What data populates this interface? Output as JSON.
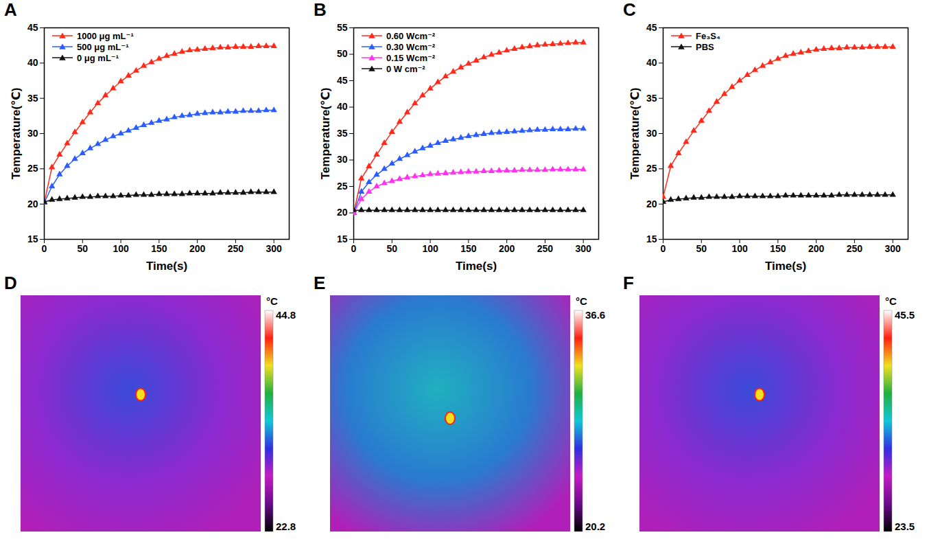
{
  "chart_data": [
    {
      "panel": "A",
      "type": "line",
      "marker": "triangle",
      "legend": "upper left",
      "x_label": "Time(s)",
      "y_label": "Temperature(℃)",
      "xlim": [
        0,
        320
      ],
      "xticks": [
        0,
        50,
        100,
        150,
        200,
        250,
        300
      ],
      "ylim": [
        15,
        45
      ],
      "yticks": [
        15,
        20,
        25,
        30,
        35,
        40,
        45
      ],
      "x": [
        0,
        10,
        20,
        30,
        40,
        50,
        60,
        70,
        80,
        90,
        100,
        110,
        120,
        130,
        140,
        150,
        160,
        170,
        180,
        190,
        200,
        210,
        220,
        230,
        240,
        250,
        260,
        270,
        280,
        290,
        300
      ],
      "series": [
        {
          "name": "1000 μg mL⁻¹",
          "color": "#ff2a1a",
          "values": [
            20.2,
            25.2,
            27.0,
            28.6,
            30.2,
            31.6,
            33.0,
            34.3,
            35.4,
            36.4,
            37.4,
            38.2,
            38.9,
            39.6,
            40.1,
            40.6,
            41.0,
            41.3,
            41.6,
            41.8,
            41.9,
            42.0,
            42.1,
            42.2,
            42.2,
            42.3,
            42.3,
            42.3,
            42.4,
            42.4,
            42.4
          ]
        },
        {
          "name": "500 μg mL⁻¹",
          "color": "#2a5cff",
          "values": [
            20.2,
            22.5,
            24.2,
            25.4,
            26.4,
            27.2,
            27.9,
            28.5,
            29.1,
            29.6,
            30.0,
            30.4,
            30.8,
            31.2,
            31.5,
            31.8,
            32.0,
            32.3,
            32.5,
            32.6,
            32.8,
            32.9,
            33.0,
            33.0,
            33.1,
            33.1,
            33.2,
            33.2,
            33.2,
            33.3,
            33.3
          ]
        },
        {
          "name": "0 μg mL⁻¹",
          "color": "#111111",
          "values": [
            20.3,
            20.6,
            20.7,
            20.8,
            20.9,
            21.0,
            21.0,
            21.1,
            21.1,
            21.1,
            21.2,
            21.2,
            21.3,
            21.3,
            21.3,
            21.4,
            21.4,
            21.4,
            21.4,
            21.5,
            21.5,
            21.5,
            21.5,
            21.6,
            21.6,
            21.6,
            21.6,
            21.7,
            21.7,
            21.7,
            21.7
          ]
        }
      ]
    },
    {
      "panel": "B",
      "type": "line",
      "marker": "triangle",
      "legend": "upper left",
      "x_label": "Time(s)",
      "y_label": "Temperature(℃)",
      "xlim": [
        0,
        320
      ],
      "xticks": [
        0,
        50,
        100,
        150,
        200,
        250,
        300
      ],
      "ylim": [
        15,
        55
      ],
      "yticks": [
        15,
        20,
        25,
        30,
        35,
        40,
        45,
        50,
        55
      ],
      "x": [
        0,
        10,
        20,
        30,
        40,
        50,
        60,
        70,
        80,
        90,
        100,
        110,
        120,
        130,
        140,
        150,
        160,
        170,
        180,
        190,
        200,
        210,
        220,
        230,
        240,
        250,
        260,
        270,
        280,
        290,
        300
      ],
      "series": [
        {
          "name": "0.60 Wcm⁻²",
          "color": "#ff2a1a",
          "values": [
            20.0,
            26.5,
            28.8,
            31.0,
            33.2,
            35.3,
            37.2,
            39.0,
            40.7,
            42.2,
            43.5,
            44.7,
            45.8,
            46.7,
            47.5,
            48.2,
            48.8,
            49.4,
            49.9,
            50.3,
            50.7,
            51.0,
            51.3,
            51.5,
            51.7,
            51.8,
            51.9,
            52.0,
            52.1,
            52.2,
            52.2
          ]
        },
        {
          "name": "0.30 Wcm⁻²",
          "color": "#2a5cff",
          "values": [
            20.0,
            24.0,
            25.8,
            27.2,
            28.3,
            29.3,
            30.2,
            30.9,
            31.6,
            32.2,
            32.7,
            33.2,
            33.6,
            33.9,
            34.2,
            34.5,
            34.7,
            34.9,
            35.1,
            35.2,
            35.3,
            35.4,
            35.5,
            35.6,
            35.7,
            35.7,
            35.8,
            35.8,
            35.8,
            35.9,
            35.9
          ]
        },
        {
          "name": "0.15 Wcm⁻²",
          "color": "#ff33ee",
          "values": [
            20.0,
            22.6,
            24.0,
            25.0,
            25.6,
            26.0,
            26.4,
            26.7,
            26.9,
            27.1,
            27.3,
            27.4,
            27.5,
            27.6,
            27.7,
            27.8,
            27.8,
            27.9,
            27.9,
            28.0,
            28.0,
            28.0,
            28.1,
            28.1,
            28.1,
            28.1,
            28.2,
            28.2,
            28.2,
            28.2,
            28.2
          ]
        },
        {
          "name": "0 W cm⁻²",
          "color": "#111111",
          "values": [
            20.5,
            20.5,
            20.5,
            20.5,
            20.5,
            20.5,
            20.5,
            20.5,
            20.5,
            20.5,
            20.5,
            20.5,
            20.5,
            20.5,
            20.5,
            20.5,
            20.5,
            20.5,
            20.5,
            20.5,
            20.5,
            20.5,
            20.5,
            20.5,
            20.5,
            20.5,
            20.5,
            20.5,
            20.5,
            20.5,
            20.5
          ]
        }
      ]
    },
    {
      "panel": "C",
      "type": "line",
      "marker": "triangle",
      "legend": "upper left",
      "x_label": "Time(s)",
      "y_label": "Temperature(℃)",
      "xlim": [
        0,
        320
      ],
      "xticks": [
        0,
        50,
        100,
        150,
        200,
        250,
        300
      ],
      "ylim": [
        15,
        45
      ],
      "yticks": [
        15,
        20,
        25,
        30,
        35,
        40,
        45
      ],
      "x": [
        0,
        10,
        20,
        30,
        40,
        50,
        60,
        70,
        80,
        90,
        100,
        110,
        120,
        130,
        140,
        150,
        160,
        170,
        180,
        190,
        200,
        210,
        220,
        230,
        240,
        250,
        260,
        270,
        280,
        290,
        300
      ],
      "series": [
        {
          "name": "Fe₃S₄",
          "color": "#ff2a1a",
          "values": [
            21.0,
            25.4,
            27.2,
            28.8,
            30.4,
            31.8,
            33.2,
            34.5,
            35.6,
            36.6,
            37.5,
            38.3,
            39.0,
            39.6,
            40.1,
            40.6,
            41.0,
            41.3,
            41.5,
            41.7,
            41.9,
            42.0,
            42.1,
            42.1,
            42.2,
            42.2,
            42.2,
            42.3,
            42.3,
            42.3,
            42.3
          ]
        },
        {
          "name": "PBS",
          "color": "#111111",
          "values": [
            20.3,
            20.6,
            20.7,
            20.8,
            20.9,
            20.9,
            21.0,
            21.0,
            21.0,
            21.0,
            21.1,
            21.1,
            21.1,
            21.1,
            21.1,
            21.1,
            21.2,
            21.2,
            21.2,
            21.2,
            21.2,
            21.2,
            21.2,
            21.3,
            21.3,
            21.3,
            21.3,
            21.3,
            21.3,
            21.3,
            21.3
          ]
        }
      ]
    }
  ],
  "images": [
    {
      "panel": "D",
      "unit": "°C",
      "range": [
        22.8,
        44.8
      ]
    },
    {
      "panel": "E",
      "unit": "°C",
      "range": [
        20.2,
        36.6
      ]
    },
    {
      "panel": "F",
      "unit": "°C",
      "range": [
        23.5,
        45.5
      ]
    }
  ]
}
